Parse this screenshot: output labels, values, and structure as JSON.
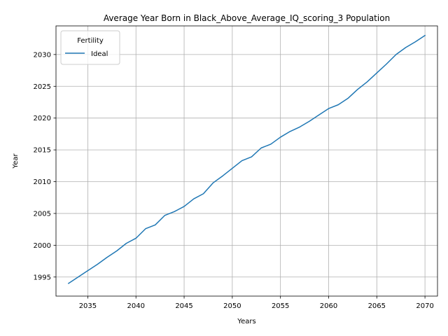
{
  "chart_data": {
    "type": "line",
    "title": "Average Year Born in Black_Above_Average_IQ_scoring_3 Population",
    "xlabel": "Years",
    "ylabel": "Year",
    "xlim": [
      2031.7,
      2071.3
    ],
    "ylim": [
      1992.0,
      2034.5
    ],
    "xticks": [
      2035,
      2040,
      2045,
      2050,
      2055,
      2060,
      2065,
      2070
    ],
    "yticks": [
      1995,
      2000,
      2005,
      2010,
      2015,
      2020,
      2025,
      2030
    ],
    "grid": true,
    "legend": {
      "title": "Fertility",
      "placement": "top-left"
    },
    "series": [
      {
        "name": "Ideal",
        "color": "#1f77b4",
        "x": [
          2033,
          2034,
          2035,
          2036,
          2037,
          2038,
          2039,
          2040,
          2041,
          2042,
          2043,
          2044,
          2045,
          2046,
          2047,
          2048,
          2049,
          2050,
          2051,
          2052,
          2053,
          2054,
          2055,
          2056,
          2057,
          2058,
          2059,
          2060,
          2061,
          2062,
          2063,
          2064,
          2065,
          2066,
          2067,
          2068,
          2069,
          2070
        ],
        "y": [
          1994.0,
          1995.0,
          1996.0,
          1997.0,
          1998.1,
          1999.1,
          2000.3,
          2001.1,
          2002.6,
          2003.2,
          2004.7,
          2005.3,
          2006.1,
          2007.3,
          2008.1,
          2009.8,
          2010.9,
          2012.1,
          2013.3,
          2013.9,
          2015.3,
          2015.9,
          2017.0,
          2017.9,
          2018.6,
          2019.5,
          2020.5,
          2021.5,
          2022.1,
          2023.1,
          2024.5,
          2025.7,
          2027.1,
          2028.5,
          2030.0,
          2031.1,
          2032.0,
          2033.0
        ]
      }
    ]
  }
}
